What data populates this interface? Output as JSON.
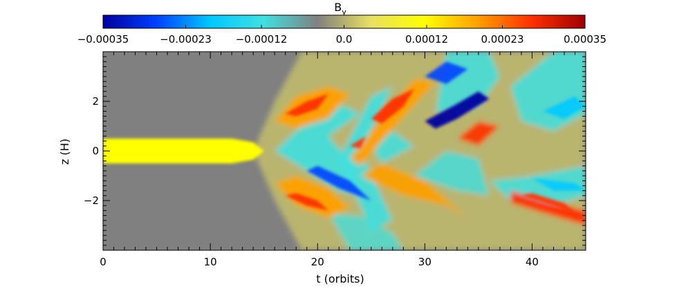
{
  "chart_data": {
    "type": "heatmap",
    "title": "B",
    "title_subscript": "y",
    "xlabel": "t (orbits)",
    "ylabel": "z (H)",
    "xlim": [
      0,
      45
    ],
    "ylim": [
      -4,
      4
    ],
    "x_ticks": [
      0,
      10,
      20,
      30,
      40
    ],
    "x_tick_labels": [
      "0",
      "10",
      "20",
      "30",
      "40"
    ],
    "y_ticks": [
      -2,
      0,
      2
    ],
    "y_tick_labels": [
      "−2",
      "0",
      "2"
    ],
    "colorbar": {
      "range": [
        -0.00035,
        0.00035
      ],
      "ticks": [
        -0.00035,
        -0.00023,
        -0.00012,
        0.0,
        0.00012,
        0.00023,
        0.00035
      ],
      "tick_labels": [
        "−0.00035",
        "−0.00023",
        "−0.00012",
        "0.0",
        "0.00012",
        "0.00023",
        "0.00035"
      ],
      "colors": [
        "#0000a0",
        "#0040ff",
        "#00c8ff",
        "#40e0e0",
        "#808080",
        "#e8e060",
        "#ffff00",
        "#ffa000",
        "#ff3000",
        "#a00000"
      ]
    },
    "background_color": "#808080",
    "features": [
      {
        "desc": "initial uniform field band",
        "t": [
          0,
          14
        ],
        "z": [
          -0.5,
          0.5
        ],
        "value": 9e-05
      },
      {
        "desc": "positive lobe upper",
        "t": [
          15,
          22
        ],
        "z": [
          1.2,
          2.5
        ],
        "value": 0.00022
      },
      {
        "desc": "positive lobe lower",
        "t": [
          15,
          22
        ],
        "z": [
          -2.6,
          -1.4
        ],
        "value": 0.00022
      },
      {
        "desc": "strong positive upper",
        "t": [
          22,
          29
        ],
        "z": [
          0.5,
          2.5
        ],
        "value": 0.00032
      },
      {
        "desc": "strong negative upper",
        "t": [
          29,
          35
        ],
        "z": [
          1.0,
          2.6
        ],
        "value": -0.00033
      },
      {
        "desc": "negative lower",
        "t": [
          18,
          26
        ],
        "z": [
          -2.5,
          -0.8
        ],
        "value": -0.00025
      },
      {
        "desc": "positive lower",
        "t": [
          38,
          45
        ],
        "z": [
          -2.5,
          -1.5
        ],
        "value": 0.00022
      }
    ]
  }
}
